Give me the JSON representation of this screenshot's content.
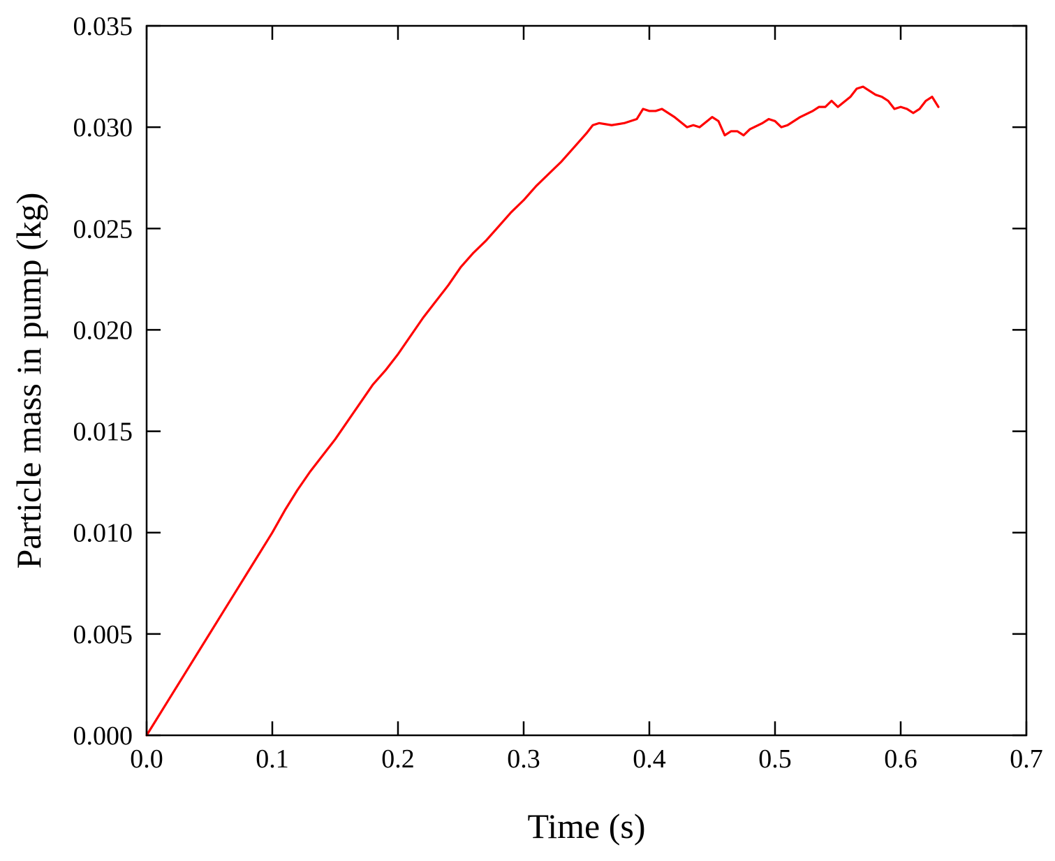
{
  "chart_data": {
    "type": "line",
    "title": "",
    "xlabel": "Time (s)",
    "ylabel": "Particle mass in pump (kg)",
    "xlim": [
      0,
      0.7
    ],
    "ylim": [
      0,
      0.035
    ],
    "grid": false,
    "x_ticks": [
      "0.0",
      "0.1",
      "0.2",
      "0.3",
      "0.4",
      "0.5",
      "0.6",
      "0.7"
    ],
    "y_ticks": [
      "0.000",
      "0.005",
      "0.010",
      "0.015",
      "0.020",
      "0.025",
      "0.030",
      "0.035"
    ],
    "x_tick_values": [
      0,
      0.1,
      0.2,
      0.3,
      0.4,
      0.5,
      0.6,
      0.7
    ],
    "y_tick_values": [
      0,
      0.005,
      0.01,
      0.015,
      0.02,
      0.025,
      0.03,
      0.035
    ],
    "series": [
      {
        "color": "#ff0000",
        "x": [
          0.0,
          0.01,
          0.02,
          0.03,
          0.04,
          0.05,
          0.06,
          0.07,
          0.08,
          0.09,
          0.1,
          0.11,
          0.12,
          0.13,
          0.14,
          0.15,
          0.16,
          0.17,
          0.18,
          0.19,
          0.2,
          0.21,
          0.22,
          0.23,
          0.24,
          0.25,
          0.26,
          0.27,
          0.28,
          0.29,
          0.3,
          0.31,
          0.32,
          0.33,
          0.34,
          0.35,
          0.355,
          0.36,
          0.37,
          0.38,
          0.39,
          0.395,
          0.4,
          0.405,
          0.41,
          0.42,
          0.43,
          0.435,
          0.44,
          0.45,
          0.455,
          0.46,
          0.465,
          0.47,
          0.475,
          0.48,
          0.49,
          0.495,
          0.5,
          0.505,
          0.51,
          0.52,
          0.53,
          0.535,
          0.54,
          0.545,
          0.55,
          0.56,
          0.565,
          0.57,
          0.575,
          0.58,
          0.585,
          0.59,
          0.595,
          0.6,
          0.605,
          0.61,
          0.615,
          0.62,
          0.625,
          0.63
        ],
        "y": [
          0.0,
          0.001,
          0.002,
          0.003,
          0.004,
          0.005,
          0.006,
          0.007,
          0.008,
          0.009,
          0.01,
          0.0111,
          0.0121,
          0.013,
          0.0138,
          0.0146,
          0.0155,
          0.0164,
          0.0173,
          0.018,
          0.0188,
          0.0197,
          0.0206,
          0.0214,
          0.0222,
          0.0231,
          0.0238,
          0.0244,
          0.0251,
          0.0258,
          0.0264,
          0.0271,
          0.0277,
          0.0283,
          0.029,
          0.0297,
          0.0301,
          0.0302,
          0.0301,
          0.0302,
          0.0304,
          0.0309,
          0.0308,
          0.0308,
          0.0309,
          0.0305,
          0.03,
          0.0301,
          0.03,
          0.0305,
          0.0303,
          0.0296,
          0.0298,
          0.0298,
          0.0296,
          0.0299,
          0.0302,
          0.0304,
          0.0303,
          0.03,
          0.0301,
          0.0305,
          0.0308,
          0.031,
          0.031,
          0.0313,
          0.031,
          0.0315,
          0.0319,
          0.032,
          0.0318,
          0.0316,
          0.0315,
          0.0313,
          0.0309,
          0.031,
          0.0309,
          0.0307,
          0.0309,
          0.0313,
          0.0315,
          0.031
        ]
      }
    ]
  }
}
